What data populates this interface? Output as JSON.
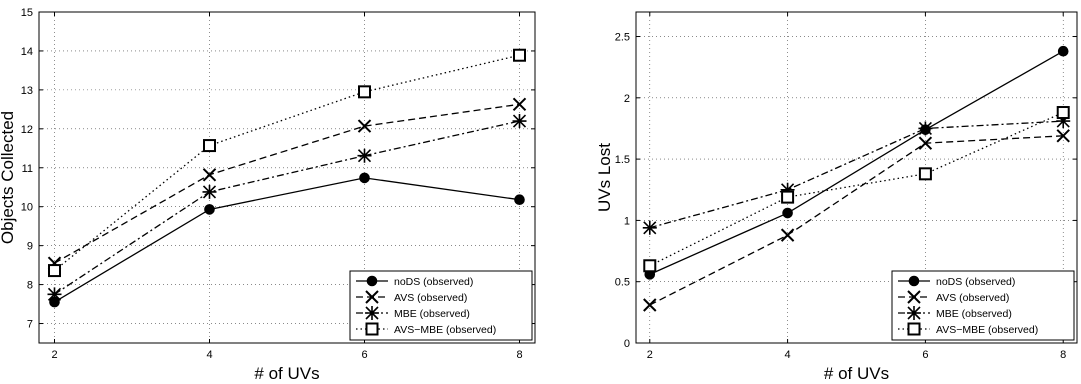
{
  "chart_data": [
    {
      "type": "line",
      "title": "",
      "xlabel": "# of UVs",
      "ylabel": "Objects Collected",
      "xlim": [
        1.8,
        8.2
      ],
      "ylim": [
        6.5,
        15
      ],
      "xticks": [
        2,
        4,
        6,
        8
      ],
      "yticks": [
        7,
        8,
        9,
        10,
        11,
        12,
        13,
        14,
        15
      ],
      "grid": true,
      "legend_position": "bottom-right",
      "x": [
        2,
        4,
        6,
        8
      ],
      "series": [
        {
          "name": "noDS (observed)",
          "values": [
            7.55,
            9.93,
            10.74,
            10.18
          ],
          "line": "solid",
          "marker": "filled-circle"
        },
        {
          "name": "AVS (observed)",
          "values": [
            8.55,
            10.82,
            12.07,
            12.63
          ],
          "line": "dashed",
          "marker": "x"
        },
        {
          "name": "MBE (observed)",
          "values": [
            7.75,
            10.38,
            11.31,
            12.2
          ],
          "line": "dashdot",
          "marker": "star"
        },
        {
          "name": "AVS−MBE (observed)",
          "values": [
            8.36,
            11.57,
            12.95,
            13.89
          ],
          "line": "dotted",
          "marker": "square"
        }
      ]
    },
    {
      "type": "line",
      "title": "",
      "xlabel": "# of UVs",
      "ylabel": "UVs Lost",
      "xlim": [
        1.8,
        8.2
      ],
      "ylim": [
        0,
        2.7
      ],
      "xticks": [
        2,
        4,
        6,
        8
      ],
      "yticks": [
        0,
        0.5,
        1,
        1.5,
        2,
        2.5
      ],
      "grid": true,
      "legend_position": "bottom-right",
      "x": [
        2,
        4,
        6,
        8
      ],
      "series": [
        {
          "name": "noDS (observed)",
          "values": [
            0.56,
            1.06,
            1.74,
            2.38
          ],
          "line": "solid",
          "marker": "filled-circle"
        },
        {
          "name": "AVS (observed)",
          "values": [
            0.31,
            0.88,
            1.63,
            1.69
          ],
          "line": "dashed",
          "marker": "x"
        },
        {
          "name": "MBE (observed)",
          "values": [
            0.94,
            1.25,
            1.75,
            1.81
          ],
          "line": "dashdot",
          "marker": "star"
        },
        {
          "name": "AVS−MBE (observed)",
          "values": [
            0.63,
            1.19,
            1.38,
            1.88
          ],
          "line": "dotted",
          "marker": "square"
        }
      ]
    }
  ]
}
